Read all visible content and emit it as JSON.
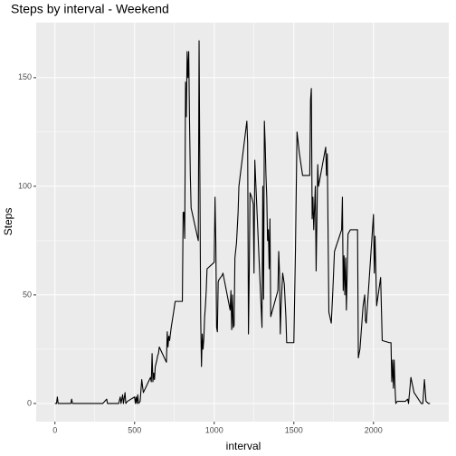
{
  "chart_data": {
    "type": "line",
    "title": "Steps by interval - Weekend",
    "x_label": "interval",
    "y_label": "Steps",
    "x": [
      0,
      10,
      15,
      20,
      55,
      100,
      105,
      110,
      155,
      200,
      255,
      300,
      325,
      330,
      355,
      400,
      410,
      415,
      425,
      430,
      440,
      445,
      455,
      500,
      505,
      510,
      515,
      520,
      525,
      535,
      545,
      555,
      600,
      605,
      610,
      615,
      620,
      625,
      630,
      640,
      645,
      650,
      655,
      700,
      705,
      710,
      715,
      720,
      730,
      745,
      755,
      800,
      805,
      810,
      815,
      820,
      825,
      830,
      835,
      840,
      845,
      850,
      855,
      900,
      905,
      910,
      915,
      920,
      925,
      930,
      935,
      940,
      945,
      950,
      955,
      1000,
      1005,
      1010,
      1015,
      1020,
      1025,
      1030,
      1040,
      1050,
      1055,
      1100,
      1105,
      1110,
      1115,
      1120,
      1125,
      1130,
      1140,
      1150,
      1155,
      1200,
      1205,
      1210,
      1215,
      1220,
      1225,
      1235,
      1245,
      1250,
      1255,
      1300,
      1305,
      1310,
      1315,
      1320,
      1325,
      1330,
      1335,
      1340,
      1345,
      1350,
      1355,
      1400,
      1405,
      1410,
      1415,
      1420,
      1430,
      1440,
      1450,
      1455,
      1500,
      1510,
      1520,
      1535,
      1555,
      1600,
      1605,
      1610,
      1615,
      1620,
      1625,
      1635,
      1640,
      1650,
      1655,
      1700,
      1705,
      1710,
      1720,
      1735,
      1745,
      1755,
      1800,
      1805,
      1810,
      1815,
      1820,
      1825,
      1830,
      1840,
      1855,
      1900,
      1905,
      1915,
      1935,
      1945,
      1950,
      1955,
      2000,
      2005,
      2010,
      2020,
      2045,
      2055,
      2100,
      2110,
      2115,
      2120,
      2125,
      2130,
      2135,
      2140,
      2150,
      2200,
      2215,
      2220,
      2235,
      2255,
      2300,
      2310,
      2320,
      2330,
      2345,
      2355
    ],
    "values": [
      0,
      0,
      3,
      0,
      0,
      0,
      2,
      0,
      0,
      0,
      0,
      0,
      2,
      0,
      0,
      0,
      3,
      0,
      4,
      0,
      5,
      0,
      1,
      3,
      0,
      3,
      0,
      4,
      0,
      1,
      11,
      5,
      12,
      10,
      23,
      10,
      14,
      11,
      17,
      20,
      22,
      23,
      26,
      19,
      33,
      26,
      31,
      29,
      35,
      42,
      47,
      47,
      88,
      88,
      76,
      148,
      132,
      162,
      150,
      162,
      130,
      105,
      90,
      75,
      167,
      105,
      40,
      17,
      32,
      25,
      30,
      40,
      45,
      52,
      62,
      65,
      95,
      75,
      35,
      33,
      56,
      57,
      58,
      59,
      60,
      43,
      52,
      34,
      50,
      35,
      36,
      67,
      74,
      88,
      100,
      127,
      130,
      120,
      32,
      60,
      97,
      95,
      92,
      60,
      112,
      35,
      100,
      48,
      130,
      120,
      105,
      95,
      75,
      80,
      62,
      85,
      40,
      52,
      70,
      60,
      32,
      45,
      60,
      55,
      40,
      28,
      28,
      70,
      125,
      115,
      105,
      105,
      140,
      145,
      85,
      95,
      80,
      100,
      61,
      110,
      100,
      118,
      105,
      115,
      42,
      37,
      52,
      70,
      80,
      95,
      52,
      68,
      50,
      67,
      43,
      78,
      80,
      80,
      21,
      25,
      45,
      50,
      38,
      37,
      87,
      60,
      77,
      45,
      58,
      29,
      28,
      28,
      10,
      20,
      7,
      20,
      8,
      0,
      1,
      1,
      2,
      0,
      12,
      5,
      0,
      0,
      11,
      1,
      0,
      0
    ],
    "color": "#000000",
    "xlim": [
      -117.75,
      2472.75
    ],
    "xticks": [
      0,
      500,
      1000,
      1500,
      2000
    ],
    "ylim": [
      -8.35,
      175.35
    ],
    "yticks": [
      0,
      50,
      100,
      150
    ],
    "grid": true
  }
}
